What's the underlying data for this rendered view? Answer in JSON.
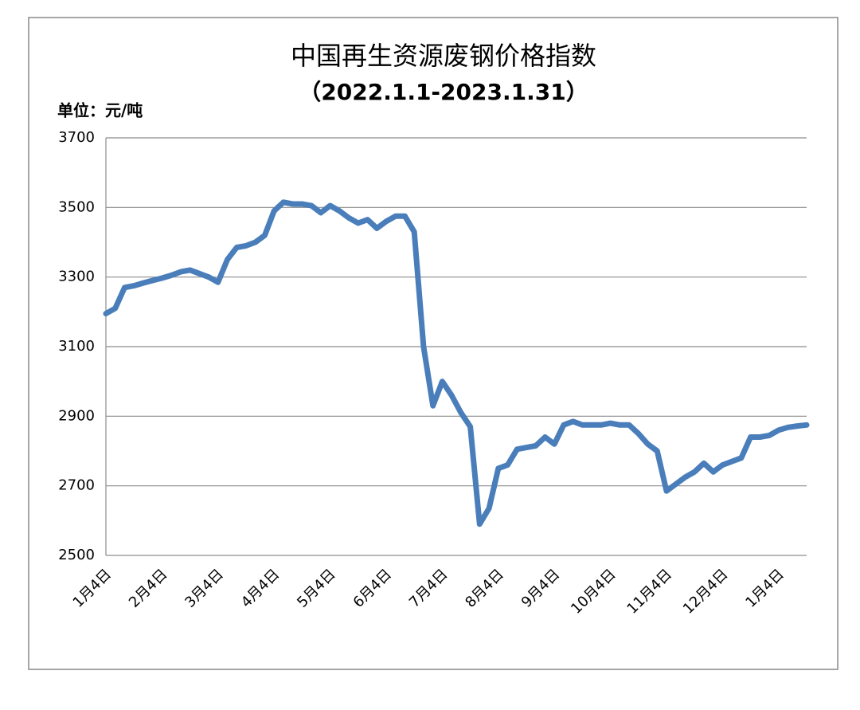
{
  "chart_data": {
    "type": "line",
    "title": "中国再生资源废钢价格指数",
    "subtitle": "（2022.1.1-2023.1.31）",
    "unit_label": "单位：元/吨",
    "categories": [
      "1月4日",
      null,
      null,
      null,
      null,
      null,
      "2月4日",
      null,
      null,
      null,
      null,
      null,
      "3月4日",
      null,
      null,
      null,
      null,
      null,
      "4月4日",
      null,
      null,
      null,
      null,
      null,
      "5月4日",
      null,
      null,
      null,
      null,
      null,
      "6月4日",
      null,
      null,
      null,
      null,
      null,
      "7月4日",
      null,
      null,
      null,
      null,
      null,
      "8月4日",
      null,
      null,
      null,
      null,
      null,
      "9月4日",
      null,
      null,
      null,
      null,
      null,
      "10月4日",
      null,
      null,
      null,
      null,
      null,
      "11月4日",
      null,
      null,
      null,
      null,
      null,
      "12月4日",
      null,
      null,
      null,
      null,
      null,
      "1月4日",
      null,
      null,
      null
    ],
    "series": [
      {
        "name": "中国再生资源废钢价格指数",
        "color": "#4a7ebb",
        "values": [
          3195,
          3210,
          3270,
          3275,
          3283,
          3290,
          3297,
          3305,
          3315,
          3320,
          3310,
          3300,
          3285,
          3350,
          3385,
          3390,
          3400,
          3420,
          3490,
          3515,
          3510,
          3510,
          3505,
          3485,
          3505,
          3490,
          3470,
          3455,
          3465,
          3440,
          3460,
          3475,
          3475,
          3430,
          3100,
          2930,
          3000,
          2960,
          2910,
          2870,
          2590,
          2635,
          2750,
          2760,
          2805,
          2810,
          2815,
          2840,
          2820,
          2875,
          2885,
          2875,
          2875,
          2875,
          2880,
          2875,
          2875,
          2850,
          2820,
          2800,
          2685,
          2705,
          2725,
          2740,
          2765,
          2740,
          2760,
          2770,
          2780,
          2840,
          2840,
          2845,
          2860,
          2868,
          2872,
          2875
        ]
      }
    ],
    "ylim": [
      2500,
      3700
    ],
    "yticks": [
      2500,
      2700,
      2900,
      3100,
      3300,
      3500,
      3700
    ],
    "grid": true
  }
}
